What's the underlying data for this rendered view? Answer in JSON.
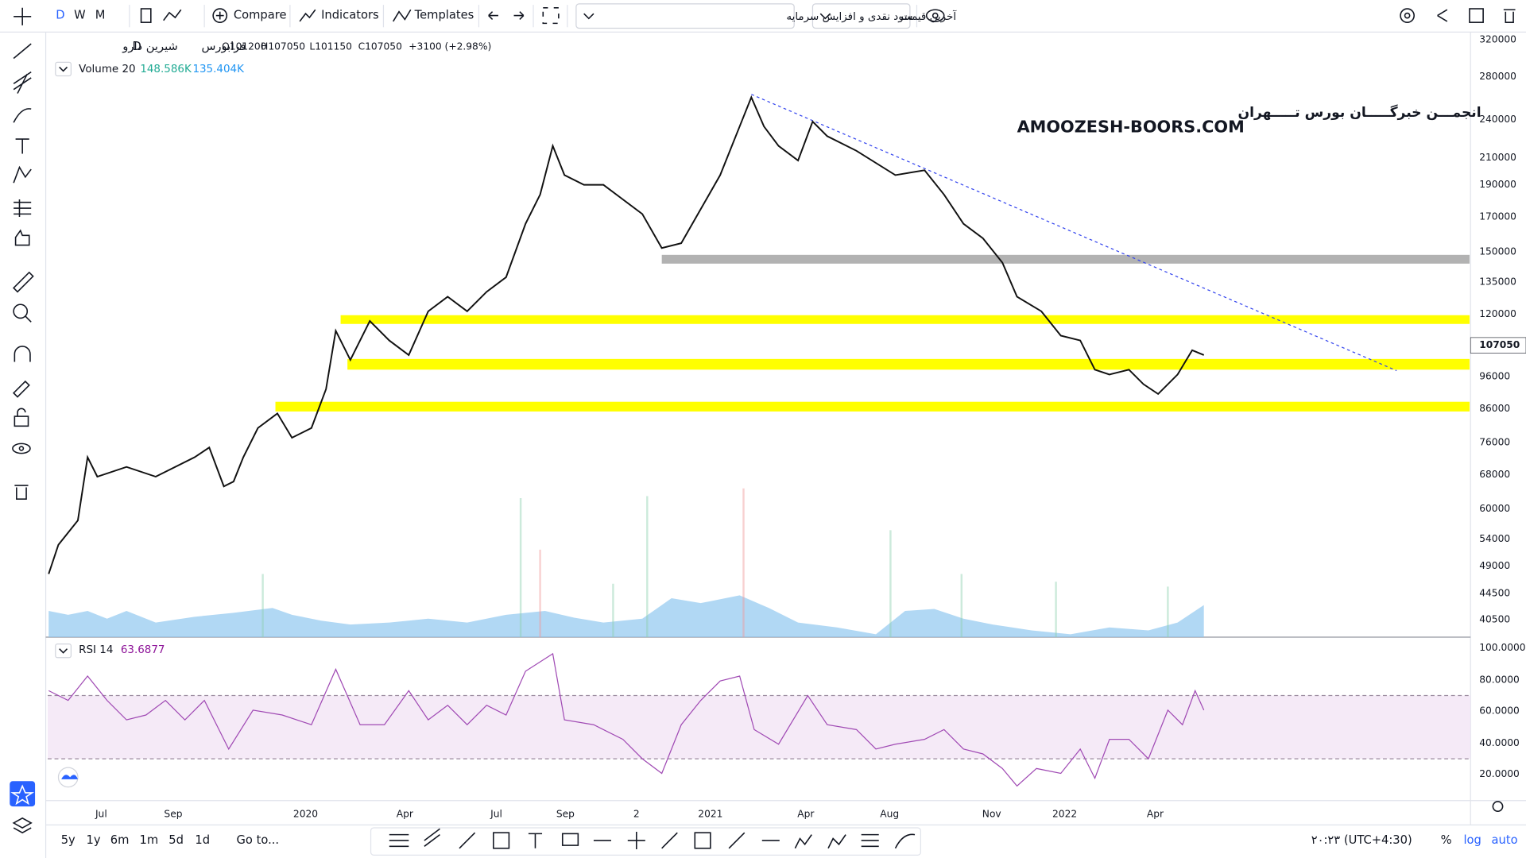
{
  "toolbar": {
    "intervals": [
      "D",
      "W",
      "M"
    ],
    "compare": "Compare",
    "indicators": "Indicators",
    "templates": "Templates",
    "symbol_search": "سود نقدی و افزایش سرمایه",
    "price_type": "آخرین قیمت"
  },
  "legend": {
    "symbol": "شیرین دارو",
    "interval": "D",
    "exchange": "فرابورس",
    "open": "O101200",
    "high": "H107050",
    "low": "L101150",
    "close": "C107050",
    "change": "+3100 (+2.98%)"
  },
  "volume": {
    "label": "Volume 20",
    "value": "148.586K",
    "ma": "135.404K"
  },
  "watermark": {
    "line1": "انجمـــن خبرگـــــان بورس تـــــهران",
    "line2": "AMOOZESH-BOORS.COM"
  },
  "price_axis": {
    "labels": [
      "320000",
      "280000",
      "240000",
      "210000",
      "190000",
      "170000",
      "150000",
      "135000",
      "120000",
      "96000",
      "86000",
      "76000",
      "68000",
      "60000",
      "54000",
      "49000",
      "44500",
      "40500"
    ],
    "last_price": "107050"
  },
  "rsi": {
    "label": "RSI 14",
    "value": "63.6877",
    "axis_labels": [
      "100.0000",
      "80.0000",
      "60.0000",
      "40.0000",
      "20.0000"
    ]
  },
  "time_axis": {
    "labels": [
      "Jul",
      "Sep",
      "2020",
      "Apr",
      "Jul",
      "Sep",
      "2",
      "2021",
      "Apr",
      "Aug",
      "Nov",
      "2022",
      "Apr"
    ]
  },
  "bottom_bar": {
    "ranges": [
      "5y",
      "1y",
      "6m",
      "1m",
      "5d",
      "1d"
    ],
    "goto": "Go to...",
    "clock": "۲۰:۲۳ (UTC+4:30)",
    "percent": "%",
    "log": "log",
    "auto": "auto"
  }
}
